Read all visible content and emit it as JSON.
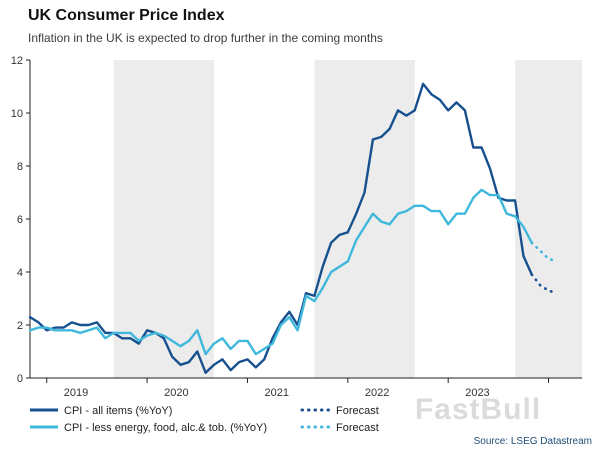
{
  "title": "UK Consumer Price Index",
  "subtitle": "Inflation in the UK is expected to drop further in the coming months",
  "source": "Source: LSEG Datastream",
  "watermark": "FastBull",
  "legend": {
    "series1": "CPI - all items (%YoY)",
    "series2": "CPI - less energy, food, alc.& tob. (%YoY)",
    "forecast1": "Forecast",
    "forecast2": "Forecast"
  },
  "colors": {
    "cpi_all": "#17508f",
    "cpi_core": "#3fb8dc",
    "band": "#ececec",
    "axis": "#222222",
    "source": "#1f4e79"
  },
  "chart_data": {
    "type": "line",
    "title": "UK Consumer Price Index",
    "subtitle": "Inflation in the UK is expected to drop further in the coming months",
    "x_start": "2018-11",
    "x_unit": "month",
    "x_domain_months": 66,
    "ylim": [
      0,
      12
    ],
    "yticks": [
      0,
      2,
      4,
      6,
      8,
      10,
      12
    ],
    "grid": false,
    "legend_position": "bottom",
    "axis_tick_month_indices": [
      2,
      14,
      26,
      38,
      50,
      62
    ],
    "xticks": [
      {
        "label": "2019",
        "center_month": 5.5
      },
      {
        "label": "2020",
        "center_month": 17.5
      },
      {
        "label": "2021",
        "center_month": 29.5
      },
      {
        "label": "2022",
        "center_month": 41.5
      },
      {
        "label": "2023",
        "center_month": 53.5
      }
    ],
    "shaded_bands_month_indices": [
      [
        10,
        22
      ],
      [
        34,
        46
      ],
      [
        58,
        66
      ]
    ],
    "series": [
      {
        "name": "CPI - all items (%YoY)",
        "color": "#17508f",
        "start_index": 0,
        "values": [
          2.3,
          2.1,
          1.8,
          1.9,
          1.9,
          2.1,
          2.0,
          2.0,
          2.1,
          1.7,
          1.7,
          1.5,
          1.5,
          1.3,
          1.8,
          1.7,
          1.5,
          0.8,
          0.5,
          0.6,
          1.0,
          0.2,
          0.5,
          0.7,
          0.3,
          0.6,
          0.7,
          0.4,
          0.7,
          1.5,
          2.1,
          2.5,
          2.0,
          3.2,
          3.1,
          4.2,
          5.1,
          5.4,
          5.5,
          6.2,
          7.0,
          9.0,
          9.1,
          9.4,
          10.1,
          9.9,
          10.1,
          11.1,
          10.7,
          10.5,
          10.1,
          10.4,
          10.1,
          8.7,
          8.7,
          7.9,
          6.8,
          6.7,
          6.7,
          4.6,
          3.9
        ]
      },
      {
        "name": "CPI - less energy, food, alc.& tob. (%YoY)",
        "color": "#3fb8dc",
        "start_index": 0,
        "values": [
          1.8,
          1.9,
          1.9,
          1.8,
          1.8,
          1.8,
          1.7,
          1.8,
          1.9,
          1.5,
          1.7,
          1.7,
          1.7,
          1.4,
          1.6,
          1.7,
          1.6,
          1.4,
          1.2,
          1.4,
          1.8,
          0.9,
          1.3,
          1.5,
          1.1,
          1.4,
          1.4,
          0.9,
          1.1,
          1.3,
          2.0,
          2.3,
          1.8,
          3.1,
          2.9,
          3.4,
          4.0,
          4.2,
          4.4,
          5.2,
          5.7,
          6.2,
          5.9,
          5.8,
          6.2,
          6.3,
          6.5,
          6.5,
          6.3,
          6.3,
          5.8,
          6.2,
          6.2,
          6.8,
          7.1,
          6.9,
          6.9,
          6.2,
          6.1,
          5.7,
          5.1
        ]
      }
    ],
    "forecast": [
      {
        "name": "Forecast",
        "color": "#17508f",
        "start_index": 60,
        "values": [
          3.9,
          3.5,
          3.3,
          3.2
        ]
      },
      {
        "name": "Forecast",
        "color": "#3fb8dc",
        "start_index": 60,
        "values": [
          5.1,
          4.8,
          4.5,
          4.4
        ]
      }
    ]
  }
}
